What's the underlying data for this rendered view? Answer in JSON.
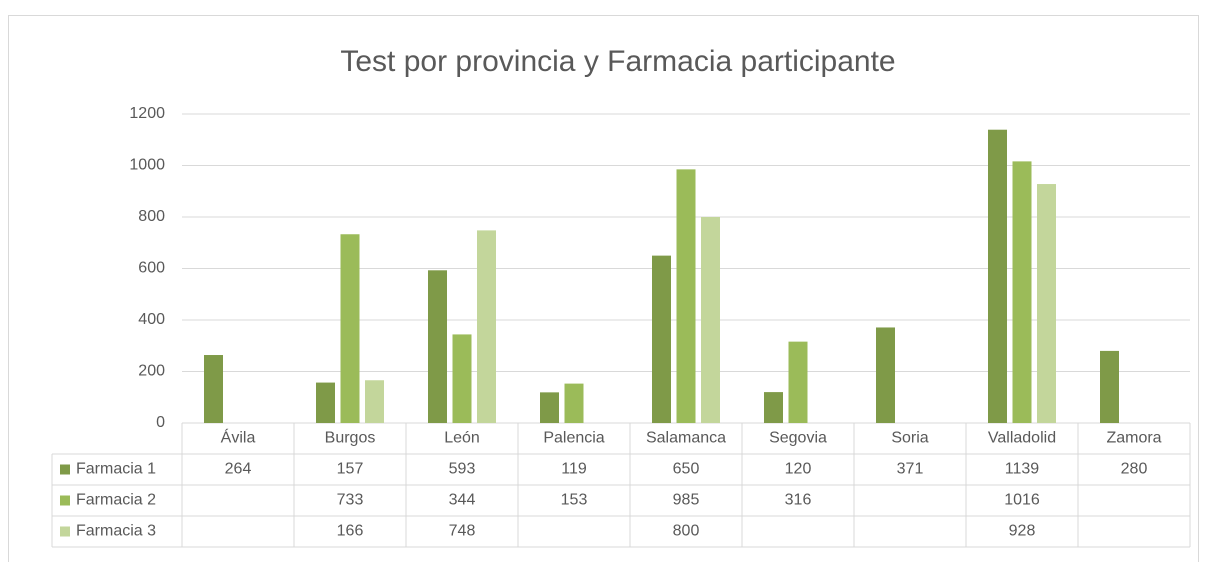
{
  "chart_data": {
    "type": "bar",
    "title": "Test por provincia y Farmacia participante",
    "categories": [
      "Ávila",
      "Burgos",
      "León",
      "Palencia",
      "Salamanca",
      "Segovia",
      "Soria",
      "Valladolid",
      "Zamora"
    ],
    "series": [
      {
        "name": "Farmacia 1",
        "color": "#7f9a48",
        "values": [
          264,
          157,
          593,
          119,
          650,
          120,
          371,
          1139,
          280
        ]
      },
      {
        "name": "Farmacia 2",
        "color": "#9bbb59",
        "values": [
          null,
          733,
          344,
          153,
          985,
          316,
          null,
          1016,
          null
        ]
      },
      {
        "name": "Farmacia 3",
        "color": "#c3d69b",
        "values": [
          null,
          166,
          748,
          null,
          800,
          null,
          null,
          928,
          null
        ]
      }
    ],
    "ylim": [
      0,
      1200
    ],
    "yticks": [
      0,
      200,
      400,
      600,
      800,
      1000,
      1200
    ],
    "grid": true
  }
}
